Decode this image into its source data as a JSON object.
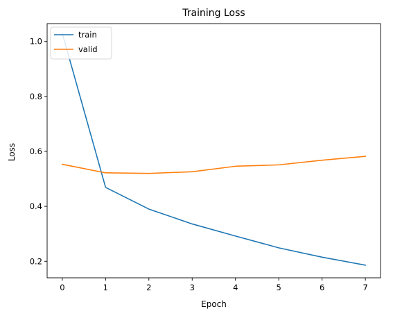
{
  "chart_data": {
    "type": "line",
    "title": "Training Loss",
    "xlabel": "Epoch",
    "ylabel": "Loss",
    "x": [
      0,
      1,
      2,
      3,
      4,
      5,
      6,
      7
    ],
    "x_ticks": [
      0,
      1,
      2,
      3,
      4,
      5,
      6,
      7
    ],
    "y_ticks": [
      0.2,
      0.4,
      0.6,
      0.8,
      1.0
    ],
    "y_tick_labels": [
      "0.2",
      "0.4",
      "0.6",
      "0.8",
      "1.0"
    ],
    "xlim": [
      -0.35,
      7.35
    ],
    "ylim": [
      0.14,
      1.065
    ],
    "grid": false,
    "legend_position": "upper left",
    "series": [
      {
        "name": "train",
        "color": "#1f77b4",
        "values": [
          1.03,
          0.469,
          0.39,
          0.336,
          0.292,
          0.249,
          0.215,
          0.186
        ]
      },
      {
        "name": "valid",
        "color": "#ff7f0e",
        "values": [
          0.553,
          0.522,
          0.52,
          0.526,
          0.546,
          0.551,
          0.568,
          0.582
        ]
      }
    ]
  }
}
